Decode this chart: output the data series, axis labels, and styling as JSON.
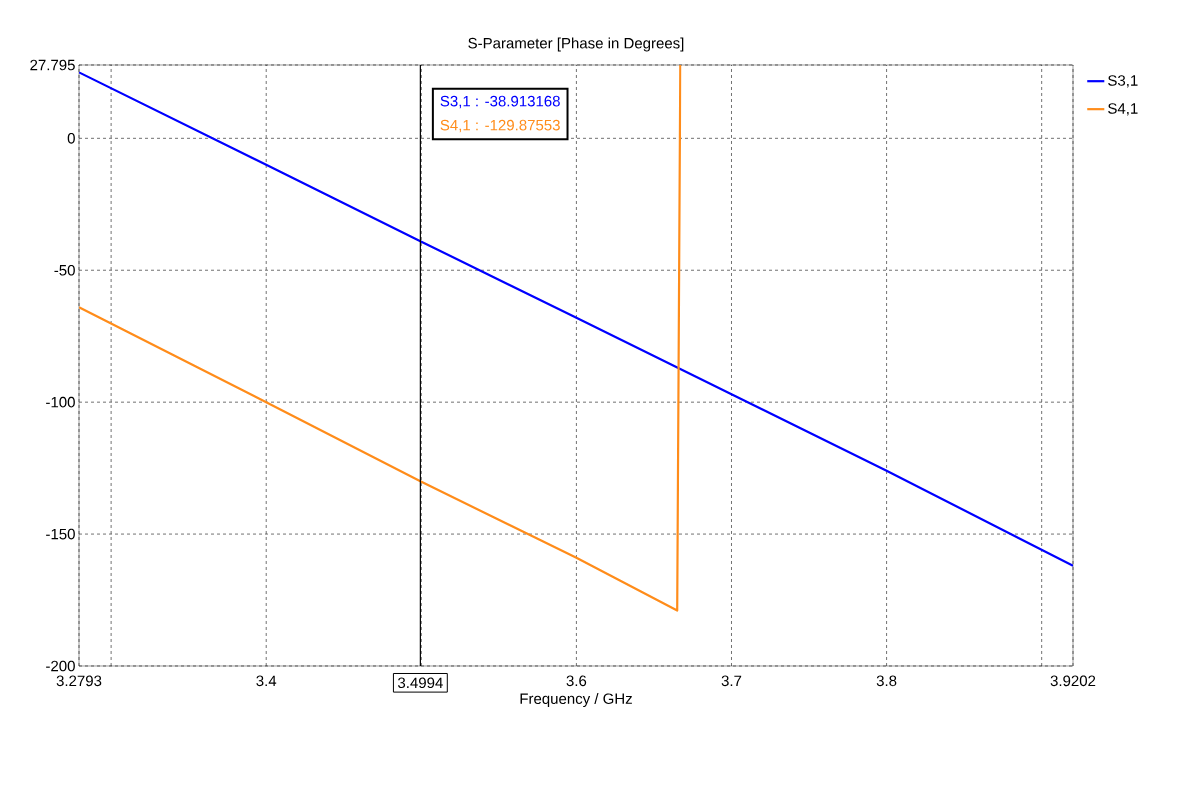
{
  "chart_data": {
    "type": "line",
    "title": "S-Parameter [Phase in Degrees]",
    "xlabel": "Frequency / GHz",
    "series": [
      {
        "name": "S3,1",
        "color": "#0000ff",
        "x": [
          3.2793,
          3.4,
          3.4994,
          3.6,
          3.7,
          3.8,
          3.9202
        ],
        "values": [
          25,
          -10,
          -39,
          -68,
          -97,
          -126,
          -162
        ]
      },
      {
        "name": "S4,1",
        "color": "#ff8c1a",
        "x": [
          3.2793,
          3.4,
          3.4994,
          3.6,
          3.665,
          3.667
        ],
        "values": [
          -64,
          -100,
          -130,
          -159,
          -179,
          27.795
        ]
      }
    ],
    "xlim": [
      3.2793,
      3.9202
    ],
    "ylim": [
      -200,
      27.795
    ],
    "xticks": [
      3.2793,
      {
        "value": 3.3,
        "label": null
      },
      3.4,
      {
        "value": 3.5,
        "label": null
      },
      3.6,
      3.7,
      3.8,
      {
        "value": 3.9,
        "label": null
      },
      3.9202
    ],
    "yticks": [
      -200,
      -150,
      -100,
      -50,
      0,
      27.795
    ],
    "ref_lines": [
      {
        "axis": "x",
        "value": 3.4994,
        "label": "3.4994",
        "color": "#000000"
      }
    ],
    "annotations": [
      "S3,1 : -38.913168",
      "S4,1 : -129.87553"
    ],
    "grid": true,
    "legend": "top right",
    "marker": "none",
    "line_style": "solid"
  }
}
